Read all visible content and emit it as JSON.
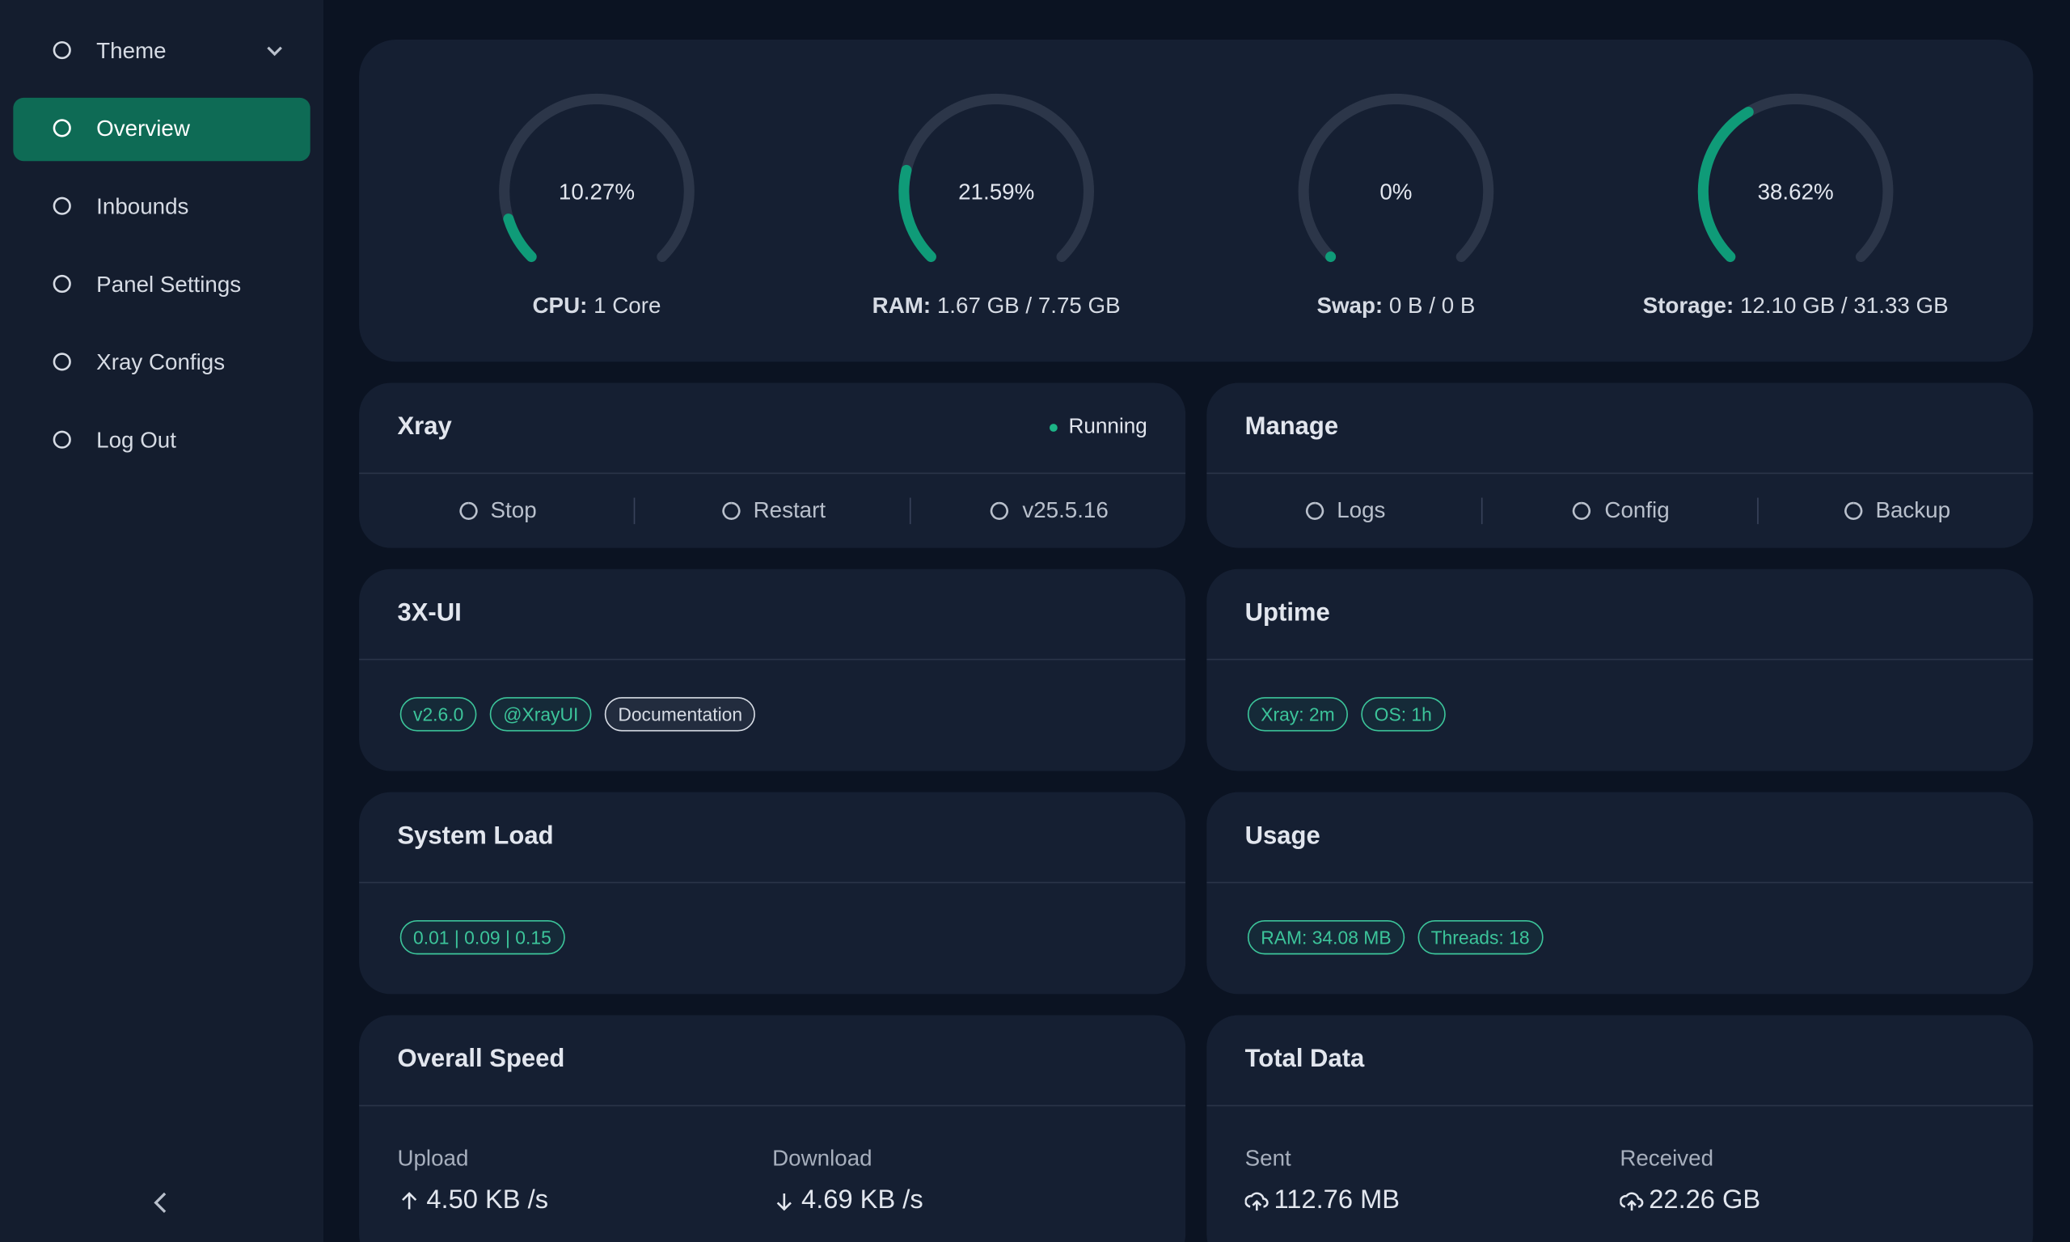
{
  "sidebar": {
    "items": [
      "Theme",
      "Overview",
      "Inbounds",
      "Panel Settings",
      "Xray Configs",
      "Log Out"
    ],
    "active": 1
  },
  "gauges": [
    {
      "value": 10.27,
      "value_label": "10.27%",
      "label": "CPU:",
      "detail": "1 Core"
    },
    {
      "value": 21.59,
      "value_label": "21.59%",
      "label": "RAM:",
      "detail": "1.67 GB / 7.75 GB"
    },
    {
      "value": 0,
      "value_label": "0%",
      "label": "Swap:",
      "detail": "0 B / 0 B"
    },
    {
      "value": 38.62,
      "value_label": "38.62%",
      "label": "Storage:",
      "detail": "12.10 GB / 31.33 GB"
    }
  ],
  "gauge_color": "#0f9b78",
  "cards": [
    {
      "title": "Xray",
      "status": "Running",
      "actions": [
        "Stop",
        "Restart",
        "v25.5.16"
      ]
    },
    {
      "title": "Manage",
      "actions": [
        "Logs",
        "Config",
        "Backup"
      ]
    },
    {
      "title": "3X-UI",
      "tags": [
        {
          "text": "v2.6.0",
          "color": "#3cc49a"
        },
        {
          "text": "@XrayUI",
          "color": "#3cc49a"
        },
        {
          "text": "Documentation",
          "color": "#d6dbe4"
        }
      ]
    },
    {
      "title": "Uptime",
      "tags": [
        {
          "text": "Xray: 2m",
          "color": "#3cc49a"
        },
        {
          "text": "OS: 1h",
          "color": "#3cc49a"
        }
      ]
    },
    {
      "title": "System Load",
      "tags": [
        {
          "text": "0.01 | 0.09 | 0.15",
          "color": "#3cc49a"
        }
      ]
    },
    {
      "title": "Usage",
      "tags": [
        {
          "text": "RAM: 34.08 MB",
          "color": "#3cc49a"
        },
        {
          "text": "Threads: 18",
          "color": "#3cc49a"
        }
      ]
    },
    {
      "title": "Overall Speed",
      "stats": [
        {
          "label": "Upload",
          "value": "4.50 KB /s"
        },
        {
          "label": "Download",
          "value": "4.69 KB /s"
        }
      ]
    },
    {
      "title": "Total Data",
      "stats": [
        {
          "label": "Sent",
          "value": "112.76 MB"
        },
        {
          "label": "Received",
          "value": "22.26 GB"
        }
      ]
    }
  ]
}
